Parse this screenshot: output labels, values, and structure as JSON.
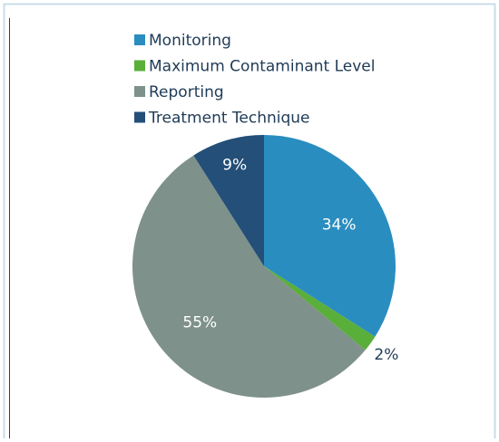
{
  "chart_data": {
    "type": "pie",
    "categories": [
      "Monitoring",
      "Maximum Contaminant Level",
      "Reporting",
      "Treatment Technique"
    ],
    "values": [
      34,
      2,
      55,
      9
    ],
    "value_labels": [
      "34%",
      "2%",
      "55%",
      "9%"
    ],
    "colors": [
      "#2a8dbf",
      "#5aae3a",
      "#7e918a",
      "#234f78"
    ],
    "legend": "top"
  }
}
